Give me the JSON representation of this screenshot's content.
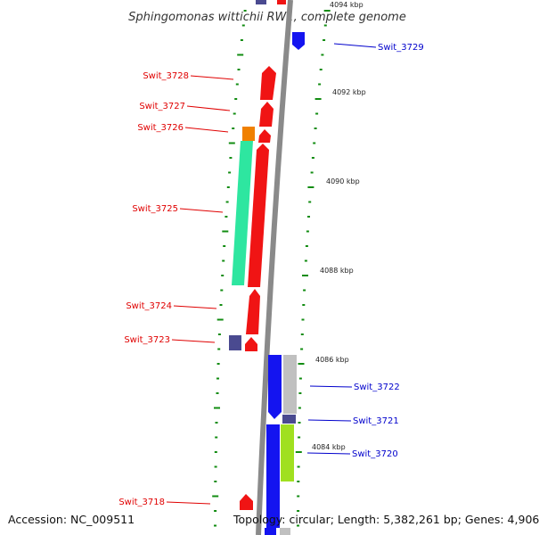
{
  "title": "Sphingomonas wittichii RW1, complete genome",
  "footer": {
    "accession": "Accession: NC_009511",
    "summary": "Topology: circular; Length: 5,382,261 bp; Genes: 4,906"
  },
  "ticks": [
    "4094 kbp",
    "4092 kbp",
    "4090 kbp",
    "4088 kbp",
    "4086 kbp",
    "4084 kbp"
  ],
  "labels_reverse": [
    "Swit_3728",
    "Swit_3727",
    "Swit_3726",
    "Swit_3725",
    "Swit_3724",
    "Swit_3723",
    "Swit_3718"
  ],
  "labels_forward": [
    "Swit_3729",
    "Swit_3722",
    "Swit_3721",
    "Swit_3720"
  ],
  "colors": {
    "backbone": "#8a8a8a",
    "forward_gene": "#1414f0",
    "reverse_gene": "#f01414",
    "reverse_label": "#e00000",
    "forward_label": "#0000cc",
    "tick": "#128c12",
    "annotation_green": "#2ee6a0",
    "annotation_orange": "#f08000",
    "annotation_gray": "#c0c0c0",
    "annotation_navy": "#4a4a90",
    "annotation_lime": "#a0e020"
  }
}
